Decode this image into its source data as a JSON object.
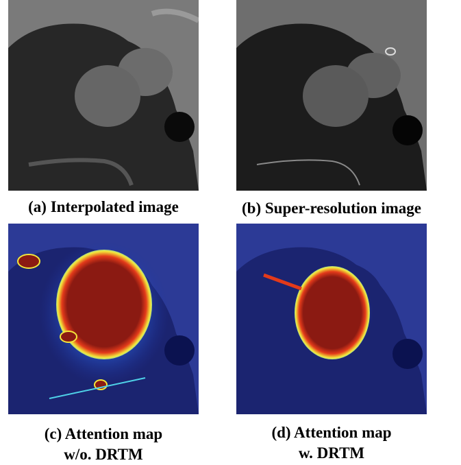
{
  "panels": [
    {
      "caption": [
        "(a) Interpolated image"
      ]
    },
    {
      "caption": [
        "(b) Super-resolution image"
      ]
    },
    {
      "caption": [
        "(c) Attention map",
        "w/o. DRTM"
      ]
    },
    {
      "caption": [
        "(d) Attention map",
        "w. DRTM"
      ]
    }
  ]
}
